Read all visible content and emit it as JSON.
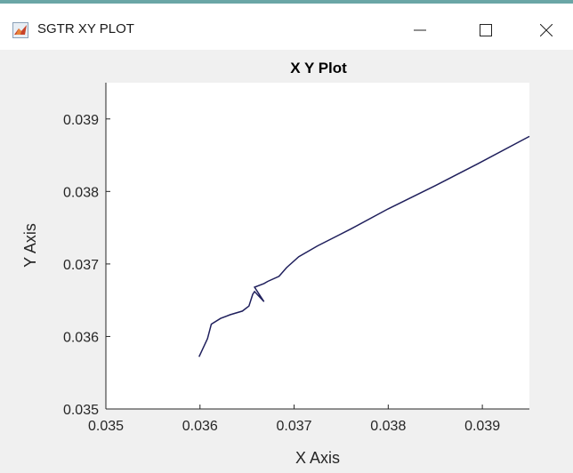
{
  "window": {
    "title": "SGTR XY PLOT",
    "icon": "matlab-figure-icon",
    "controls": [
      "minimize-icon",
      "maximize-icon",
      "close-icon"
    ]
  },
  "colors": {
    "titlebar_bg": "#ffffff",
    "figure_bg": "#f0f0f0",
    "axes_bg": "#ffffff",
    "line": "#1f1f5c",
    "accent": "#6aa6a6"
  },
  "chart_data": {
    "type": "line",
    "title": "X Y Plot",
    "xlabel": "X Axis",
    "ylabel": "Y Axis",
    "xlim": [
      0.035,
      0.0395
    ],
    "ylim": [
      0.035,
      0.0395
    ],
    "xticks": [
      "0.035",
      "0.036",
      "0.037",
      "0.038",
      "0.039"
    ],
    "yticks": [
      "0.035",
      "0.036",
      "0.037",
      "0.038",
      "0.039"
    ],
    "grid": false,
    "series": [
      {
        "x": [
          0.03599,
          0.03608,
          0.03612,
          0.03622,
          0.03632,
          0.03645,
          0.03652,
          0.03656,
          0.03658,
          0.03668,
          0.03658,
          0.03668,
          0.03672,
          0.03684,
          0.03692,
          0.03705,
          0.03725,
          0.0376,
          0.038,
          0.0385,
          0.03895,
          0.0395
        ],
        "y": [
          0.03572,
          0.03597,
          0.03617,
          0.03625,
          0.0363,
          0.03635,
          0.03642,
          0.03658,
          0.03662,
          0.03648,
          0.03668,
          0.03673,
          0.03676,
          0.03683,
          0.03695,
          0.0371,
          0.03725,
          0.03748,
          0.03776,
          0.03808,
          0.03838,
          0.03876
        ]
      }
    ]
  }
}
